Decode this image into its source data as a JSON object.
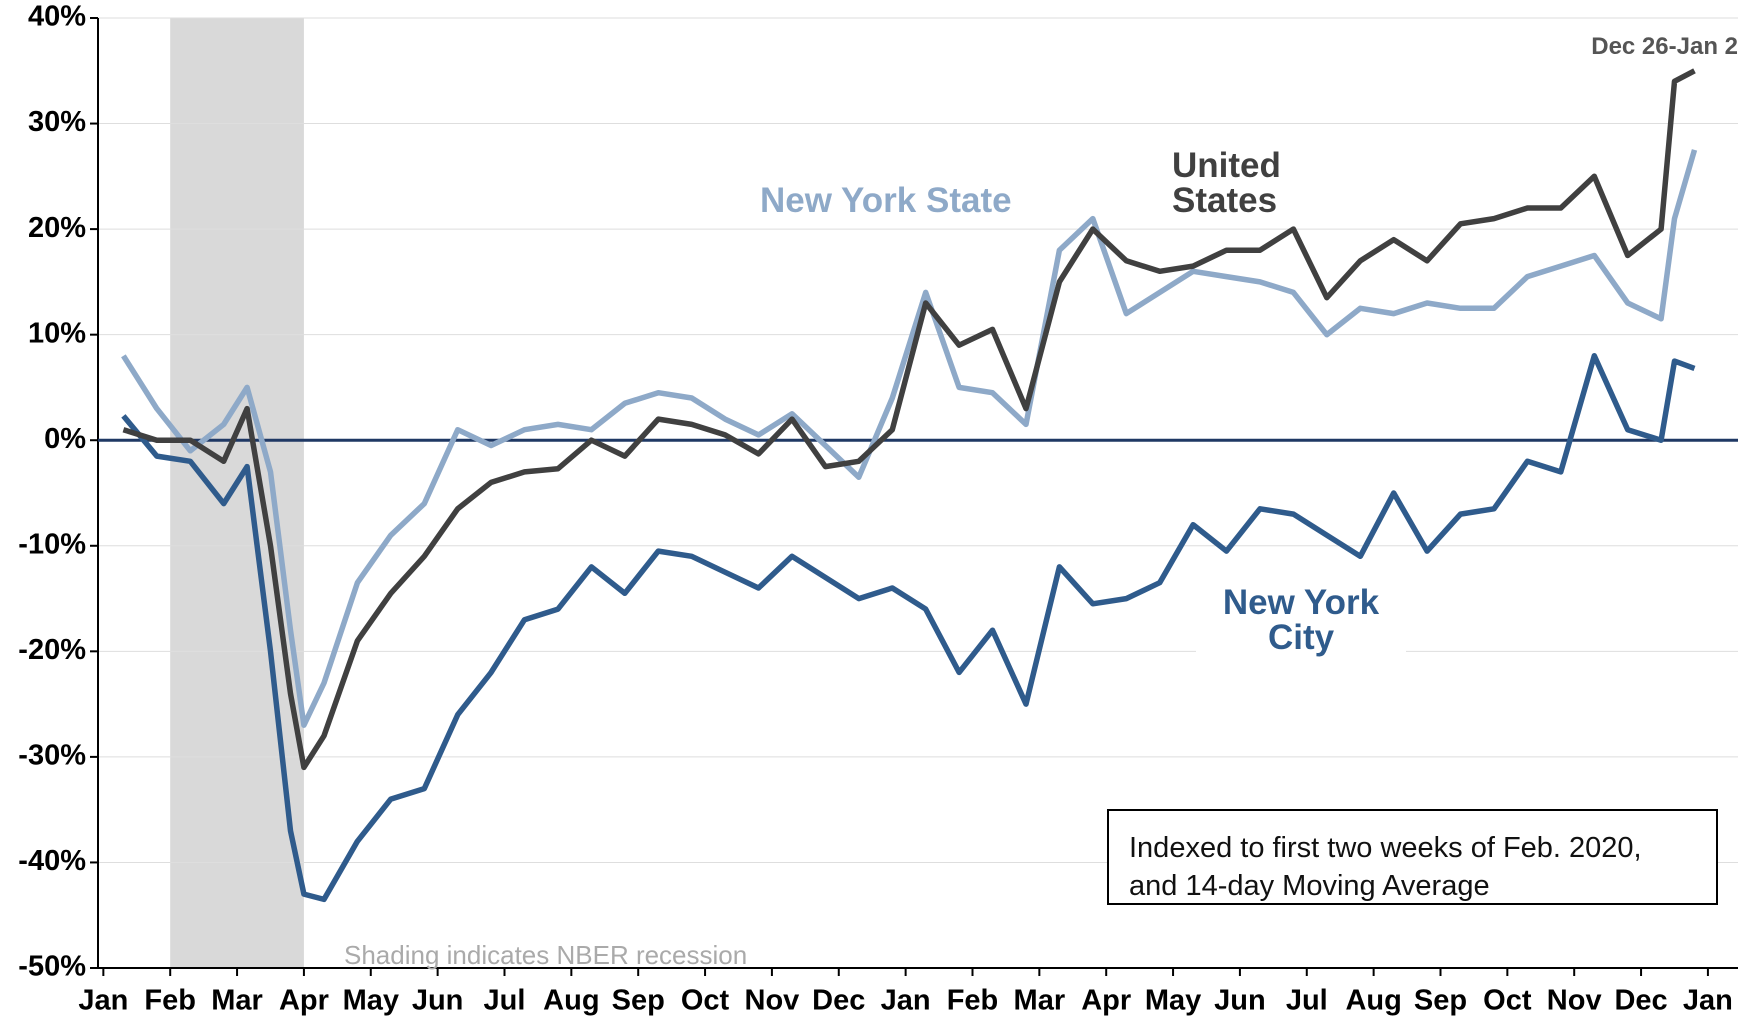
{
  "chart_data": {
    "type": "line",
    "x": [
      0.3,
      0.8,
      1.3,
      1.8,
      2.15,
      2.5,
      2.8,
      3.0,
      3.3,
      3.8,
      4.3,
      4.8,
      5.3,
      5.8,
      6.3,
      6.8,
      7.3,
      7.8,
      8.3,
      8.8,
      9.3,
      9.8,
      10.3,
      10.8,
      11.3,
      11.8,
      12.3,
      12.8,
      13.3,
      13.8,
      14.3,
      14.8,
      15.3,
      15.8,
      16.3,
      16.8,
      17.3,
      17.8,
      18.3,
      18.8,
      19.3,
      19.8,
      20.3,
      20.8,
      21.3,
      21.8,
      22.3,
      22.8,
      23.3,
      23.5,
      23.8
    ],
    "series": [
      {
        "name": "United States",
        "color": "#404040",
        "values": [
          1,
          0,
          0,
          -2,
          3,
          -10,
          -24,
          -31,
          -28,
          -19,
          -14.5,
          -11,
          -6.5,
          -4,
          -3,
          -2.7,
          0,
          -1.5,
          2,
          1.5,
          0.5,
          -1.3,
          2,
          -2.5,
          -2,
          1,
          13,
          9,
          10.5,
          3,
          15,
          20,
          17,
          16,
          16.5,
          18,
          18,
          20,
          13.5,
          17,
          19,
          17,
          20.5,
          21,
          22,
          22,
          25,
          17.5,
          20,
          34,
          35
        ]
      },
      {
        "name": "New York State",
        "color": "#8ea9c8",
        "values": [
          8,
          3,
          -1,
          1.5,
          5,
          -3,
          -18,
          -27,
          -23,
          -13.5,
          -9,
          -6,
          1,
          -0.5,
          1,
          1.5,
          1,
          3.5,
          4.5,
          4,
          2,
          0.5,
          2.5,
          -0.5,
          -3.5,
          4,
          14,
          5,
          4.5,
          1.5,
          18,
          21,
          12,
          14,
          16,
          15.5,
          15,
          14,
          10,
          12.5,
          12,
          13,
          12.5,
          12.5,
          15.5,
          16.5,
          17.5,
          13,
          11.5,
          21,
          27.5
        ]
      },
      {
        "name": "New York City",
        "color": "#2f5b8c",
        "values": [
          2.3,
          -1.5,
          -2,
          -6,
          -2.5,
          -20,
          -37,
          -43,
          -43.5,
          -38,
          -34,
          -33,
          -26,
          -22,
          -17,
          -16,
          -12,
          -14.5,
          -10.5,
          -11,
          -12.5,
          -14,
          -11,
          -13,
          -15,
          -14,
          -16,
          -22,
          -18,
          -25,
          -12,
          -15.5,
          -15,
          -13.5,
          -8,
          -10.5,
          -6.5,
          -7,
          -9,
          -11,
          -5,
          -10.5,
          -7,
          -6.5,
          -2,
          -3,
          8,
          1,
          0,
          7.5,
          6.8
        ]
      }
    ],
    "xlim": [
      -0.08,
      24.45
    ],
    "xticks": [
      {
        "value": 0,
        "label": "Jan"
      },
      {
        "value": 1,
        "label": "Feb"
      },
      {
        "value": 2,
        "label": "Mar"
      },
      {
        "value": 3,
        "label": "Apr"
      },
      {
        "value": 4,
        "label": "May"
      },
      {
        "value": 5,
        "label": "Jun"
      },
      {
        "value": 6,
        "label": "Jul"
      },
      {
        "value": 7,
        "label": "Aug"
      },
      {
        "value": 8,
        "label": "Sep"
      },
      {
        "value": 9,
        "label": "Oct"
      },
      {
        "value": 10,
        "label": "Nov"
      },
      {
        "value": 11,
        "label": "Dec"
      },
      {
        "value": 12,
        "label": "Jan"
      },
      {
        "value": 13,
        "label": "Feb"
      },
      {
        "value": 14,
        "label": "Mar"
      },
      {
        "value": 15,
        "label": "Apr"
      },
      {
        "value": 16,
        "label": "May"
      },
      {
        "value": 17,
        "label": "Jun"
      },
      {
        "value": 18,
        "label": "Jul"
      },
      {
        "value": 19,
        "label": "Aug"
      },
      {
        "value": 20,
        "label": "Sep"
      },
      {
        "value": 21,
        "label": "Oct"
      },
      {
        "value": 22,
        "label": "Nov"
      },
      {
        "value": 23,
        "label": "Dec"
      },
      {
        "value": 24,
        "label": "Jan"
      }
    ],
    "ylim": [
      -50,
      40
    ],
    "yticks": [
      {
        "value": -50,
        "label": "-50%"
      },
      {
        "value": -40,
        "label": "-40%"
      },
      {
        "value": -30,
        "label": "-30%"
      },
      {
        "value": -20,
        "label": "-20%"
      },
      {
        "value": -10,
        "label": "-10%"
      },
      {
        "value": 0,
        "label": "0%"
      },
      {
        "value": 10,
        "label": "10%"
      },
      {
        "value": 20,
        "label": "20%"
      },
      {
        "value": 30,
        "label": "30%"
      },
      {
        "value": 40,
        "label": "40%"
      }
    ],
    "grid": true,
    "shading": {
      "x": [
        1,
        3
      ],
      "label": "Shading indicates NBER recession"
    },
    "annotations": {
      "end_label": "Dec 26-Jan 2",
      "note": "Indexed to first two weeks of Feb. 2020, and 14-day Moving Average"
    }
  }
}
